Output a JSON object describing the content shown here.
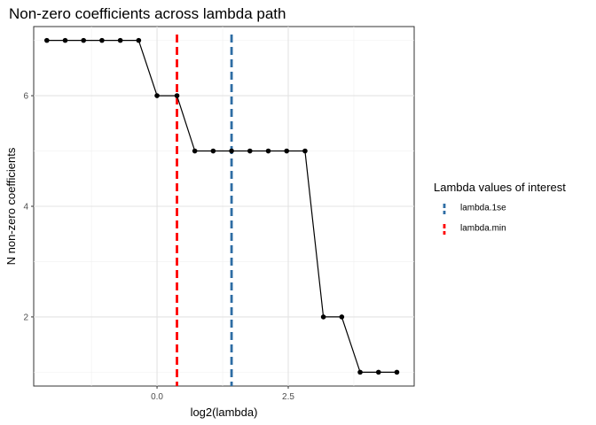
{
  "chart_data": {
    "type": "line",
    "title": "Non-zero coefficients across lambda path",
    "xlabel": "log2(lambda)",
    "ylabel": "N non-zero coefficients",
    "xlim": [
      -2.35,
      4.9
    ],
    "ylim": [
      0.75,
      7.25
    ],
    "x_ticks": [
      0.0,
      2.5
    ],
    "x_tick_labels": [
      "0.0",
      "2.5"
    ],
    "x_minor_ticks": [
      -1.25,
      1.25,
      3.75
    ],
    "y_ticks": [
      2,
      4,
      6
    ],
    "y_tick_labels": [
      "2",
      "4",
      "6"
    ],
    "y_minor_ticks": [
      1,
      3,
      5,
      7
    ],
    "grid": true,
    "series": [
      {
        "x": [
          -2.1,
          -1.75,
          -1.4,
          -1.05,
          -0.7,
          -0.35,
          0.0,
          0.38,
          0.72,
          1.07,
          1.42,
          1.77,
          2.12,
          2.47,
          2.82,
          3.17,
          3.52,
          3.87,
          4.22,
          4.57
        ],
        "values": [
          7,
          7,
          7,
          7,
          7,
          7,
          6,
          6,
          5,
          5,
          5,
          5,
          5,
          5,
          5,
          2,
          2,
          1,
          1,
          1
        ],
        "color": "#000000"
      }
    ],
    "reference_lines": [
      {
        "name": "lambda.1se",
        "x": 1.42,
        "color": "#2e6da4",
        "style": "dashed"
      },
      {
        "name": "lambda.min",
        "x": 0.38,
        "color": "#ff0000",
        "style": "dashed"
      }
    ],
    "legend": {
      "title": "Lambda values of interest",
      "position": "right",
      "entries": [
        "lambda.1se",
        "lambda.min"
      ]
    }
  }
}
